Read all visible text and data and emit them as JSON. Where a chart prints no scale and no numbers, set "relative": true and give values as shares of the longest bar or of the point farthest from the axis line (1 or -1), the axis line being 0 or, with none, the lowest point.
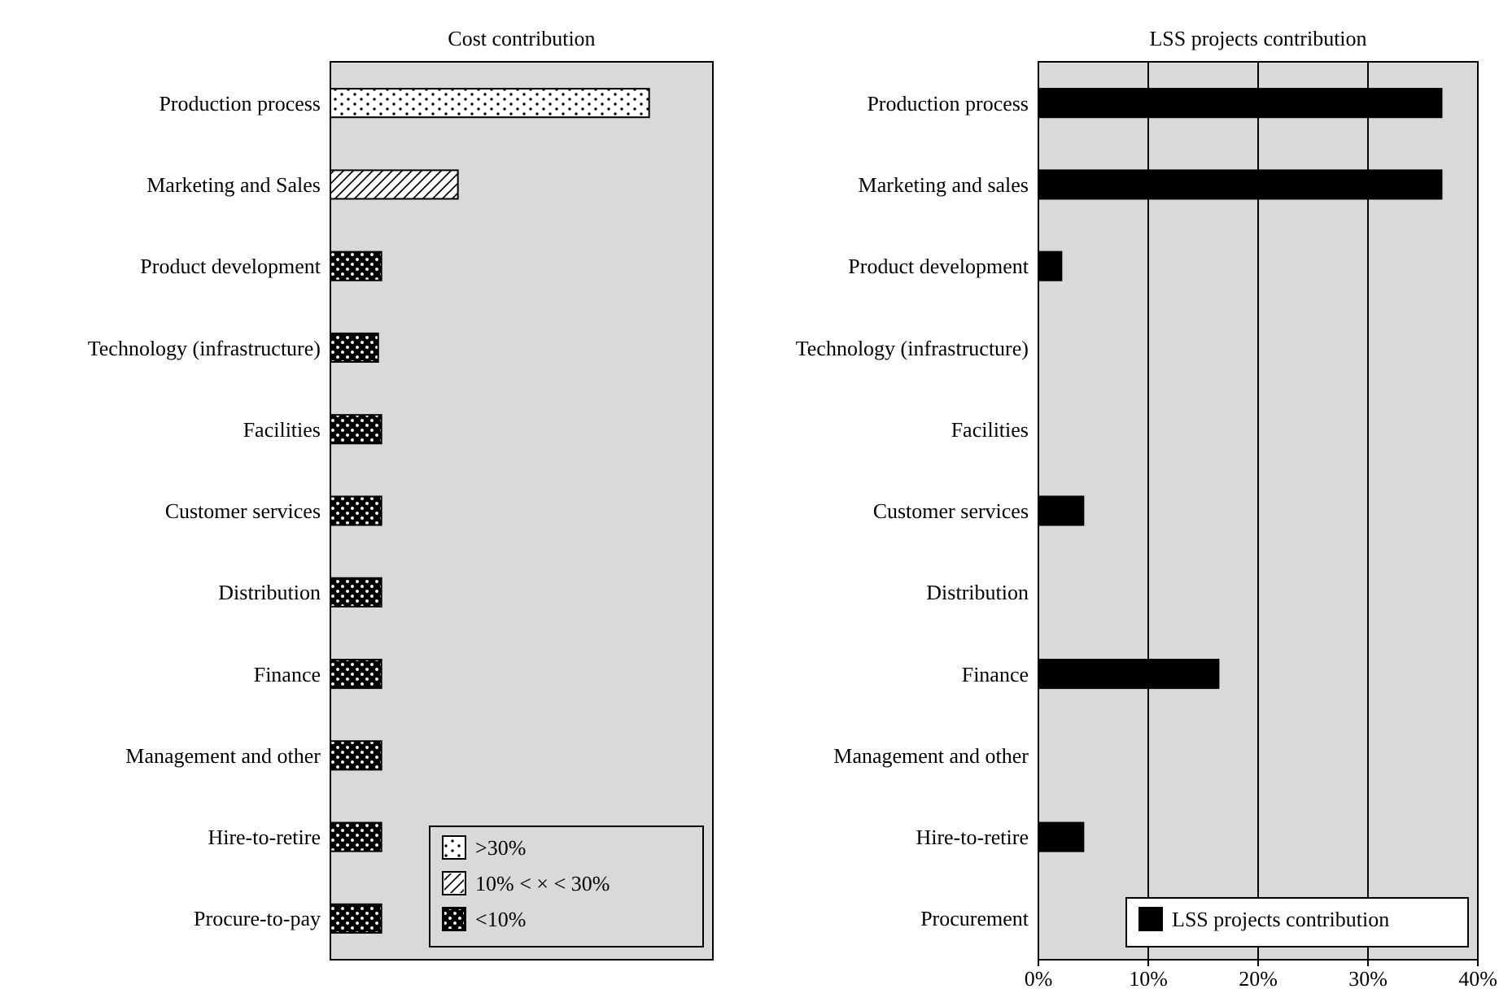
{
  "chart_data": [
    {
      "type": "bar",
      "orientation": "horizontal",
      "relative": true,
      "title": "Cost contribution",
      "categories": [
        "Production process",
        "Marketing and Sales",
        "Product development",
        "Technology (infrastructure)",
        "Facilities",
        "Customer services",
        "Distribution",
        "Finance",
        "Management and other",
        "Hire-to-retire",
        "Procure-to-pay"
      ],
      "series": [
        {
          "name": ">30%",
          "color": "#ffffff",
          "values": [
            1,
            null,
            null,
            null,
            null,
            null,
            null,
            null,
            null,
            null,
            null
          ]
        },
        {
          "name": "10% < × < 30%",
          "color": "#ffffff",
          "values": [
            null,
            0.4,
            null,
            null,
            null,
            null,
            null,
            null,
            null,
            null,
            null
          ]
        },
        {
          "name": "<10%",
          "color": "#000000",
          "values": [
            null,
            null,
            0.16,
            0.15,
            0.16,
            0.16,
            0.16,
            0.16,
            0.16,
            0.16,
            0.16
          ]
        }
      ],
      "legend": "bottom right",
      "grid": false
    },
    {
      "type": "bar",
      "orientation": "horizontal",
      "title": "LSS projects contribution",
      "categories": [
        "Production process",
        "Marketing and sales",
        "Product development",
        "Technology (infrastructure)",
        "Facilities",
        "Customer services",
        "Distribution",
        "Finance",
        "Management and other",
        "Hire-to-retire",
        "Procurement"
      ],
      "series": [
        {
          "name": "LSS projects contribution",
          "color": "#000000",
          "values": [
            36.7,
            36.7,
            2.1,
            null,
            null,
            4.1,
            null,
            16.4,
            null,
            4.1,
            null
          ]
        }
      ],
      "xlim": [
        0,
        40
      ],
      "xticks": [
        {
          "value": 0,
          "label": "0%"
        },
        {
          "value": 10,
          "label": "10%"
        },
        {
          "value": 20,
          "label": "20%"
        },
        {
          "value": 30,
          "label": "30%"
        },
        {
          "value": 40,
          "label": "40%"
        }
      ],
      "legend": "bottom right",
      "grid": "x"
    }
  ]
}
